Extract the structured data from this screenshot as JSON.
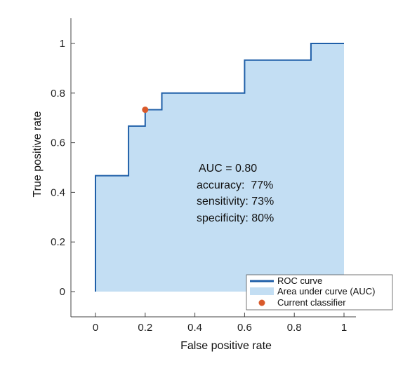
{
  "chart_data": {
    "type": "line",
    "xlabel": "False positive rate",
    "ylabel": "True positive rate",
    "xlim": [
      -0.1,
      1.05
    ],
    "ylim": [
      -0.1,
      1.1
    ],
    "xticks": [
      0,
      0.2,
      0.4,
      0.6,
      0.8,
      1
    ],
    "xtick_labels": [
      "0",
      "0.2",
      "0.4",
      "0.6",
      "0.8",
      "1"
    ],
    "yticks": [
      0,
      0.2,
      0.4,
      0.6,
      0.8,
      1
    ],
    "ytick_labels": [
      "0",
      "0.2",
      "0.4",
      "0.6",
      "0.8",
      "1"
    ],
    "grid": false,
    "series": [
      {
        "name": "ROC curve",
        "kind": "step-line",
        "color": "#1f5fa8",
        "x": [
          0,
          0,
          0.133,
          0.133,
          0.2,
          0.2,
          0.267,
          0.267,
          0.6,
          0.6,
          0.867,
          0.867,
          1
        ],
        "y": [
          0,
          0.467,
          0.467,
          0.667,
          0.667,
          0.733,
          0.733,
          0.8,
          0.8,
          0.933,
          0.933,
          1,
          1
        ]
      },
      {
        "name": "Area under curve (AUC)",
        "kind": "area",
        "color": "#c3def3"
      },
      {
        "name": "Current classifier",
        "kind": "point",
        "color": "#d95a2b",
        "x": [
          0.2
        ],
        "y": [
          0.733
        ]
      }
    ],
    "annotations": [
      "AUC = 0.80",
      "accuracy:  77%",
      "sensitivity: 73%",
      "specificity: 80%"
    ],
    "legend": {
      "placement": "bottom-right",
      "entries": [
        "ROC curve",
        "Area under curve (AUC)",
        "Current classifier"
      ]
    }
  }
}
